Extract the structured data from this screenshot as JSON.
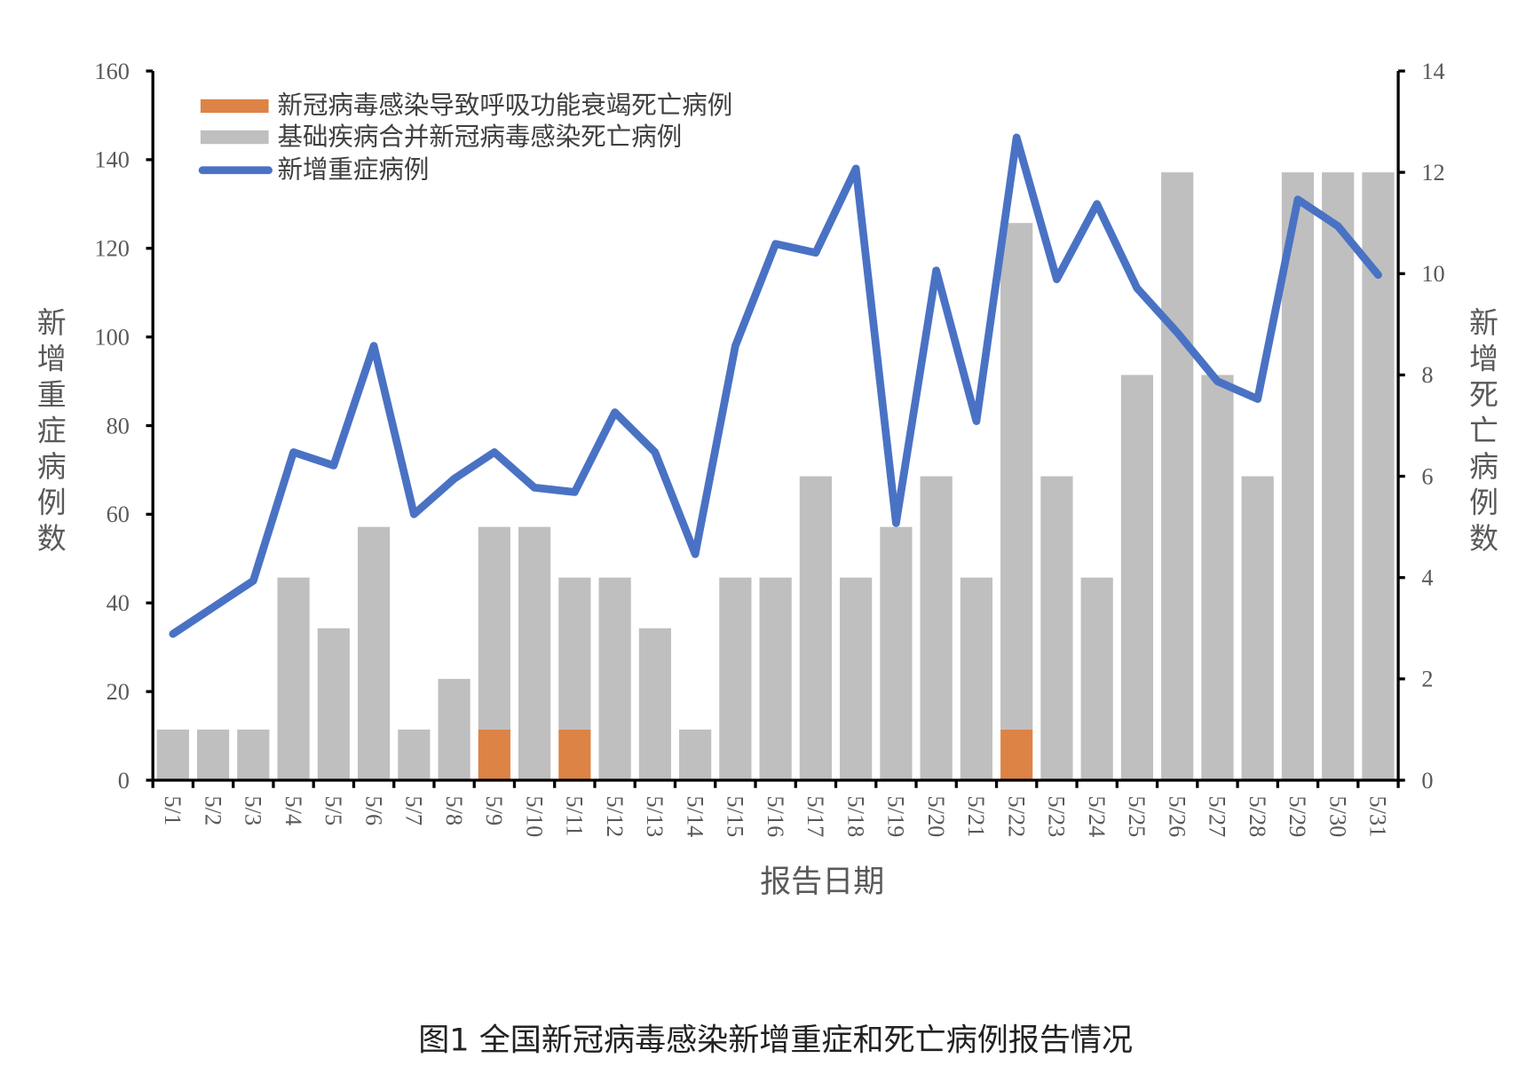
{
  "chart_data": {
    "type": "bar",
    "title": "",
    "caption": "图1 全国新冠病毒感染新增重症和死亡病例报告情况",
    "xlabel": "报告日期",
    "ylabel": "新增重症病例数",
    "y2label": "新增死亡病例数",
    "ylim": [
      0,
      160
    ],
    "yticks": [
      0,
      20,
      40,
      60,
      80,
      100,
      120,
      140,
      160
    ],
    "y2lim": [
      0,
      14
    ],
    "y2ticks": [
      0,
      2,
      4,
      6,
      8,
      10,
      12,
      14
    ],
    "legend_position": "top-left",
    "grid": false,
    "categories": [
      "5/1",
      "5/2",
      "5/3",
      "5/4",
      "5/5",
      "5/6",
      "5/7",
      "5/8",
      "5/9",
      "5/10",
      "5/11",
      "5/12",
      "5/13",
      "5/14",
      "5/15",
      "5/16",
      "5/17",
      "5/18",
      "5/19",
      "5/20",
      "5/21",
      "5/22",
      "5/23",
      "5/24",
      "5/25",
      "5/26",
      "5/27",
      "5/28",
      "5/29",
      "5/30",
      "5/31"
    ],
    "series": [
      {
        "name": "新冠病毒感染导致呼吸功能衰竭死亡病例",
        "type": "stacked-bar",
        "axis": "right",
        "color": "#DD8346",
        "values": [
          0,
          0,
          0,
          0,
          0,
          0,
          0,
          0,
          1,
          0,
          1,
          0,
          0,
          0,
          0,
          0,
          0,
          0,
          0,
          0,
          0,
          1,
          0,
          0,
          0,
          0,
          0,
          0,
          0,
          0,
          0
        ]
      },
      {
        "name": "基础疾病合并新冠病毒感染死亡病例",
        "type": "stacked-bar",
        "axis": "right",
        "color": "#BFBFBF",
        "values": [
          1,
          1,
          1,
          4,
          3,
          5,
          1,
          2,
          4,
          5,
          3,
          4,
          3,
          1,
          4,
          4,
          6,
          4,
          5,
          6,
          4,
          10,
          6,
          4,
          8,
          12,
          8,
          6,
          12,
          12,
          12
        ]
      },
      {
        "name": "新增重症病例",
        "type": "line",
        "axis": "left",
        "color": "#4A72C4",
        "values": [
          33,
          39,
          45,
          74,
          71,
          98,
          60,
          68,
          74,
          66,
          65,
          83,
          74,
          51,
          98,
          121,
          119,
          138,
          58,
          115,
          81,
          145,
          113,
          130,
          111,
          101,
          90,
          86,
          131,
          125,
          114
        ]
      }
    ]
  }
}
